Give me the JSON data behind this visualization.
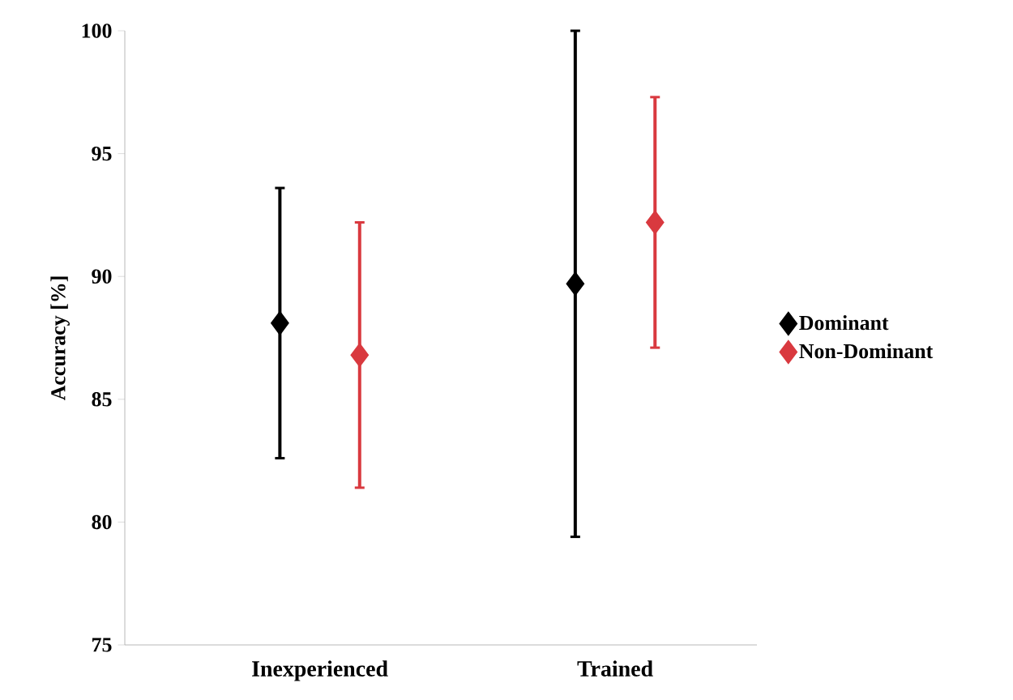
{
  "chart_data": {
    "type": "scatter",
    "ylabel": "Accuracy [%]",
    "categories": [
      "Inexperienced",
      "Trained"
    ],
    "series": [
      {
        "name": "Dominant",
        "color": "#000000",
        "values": [
          88.1,
          89.7
        ],
        "errors": [
          5.5,
          10.3
        ]
      },
      {
        "name": "Non-Dominant",
        "color": "#d9393f",
        "values": [
          86.8,
          92.2
        ],
        "errors": [
          5.4,
          5.1
        ]
      }
    ],
    "ylim": [
      75,
      100
    ],
    "yticks": [
      75,
      80,
      85,
      90,
      95,
      100
    ],
    "grid": false,
    "legend": "right",
    "marker": "diamond"
  }
}
